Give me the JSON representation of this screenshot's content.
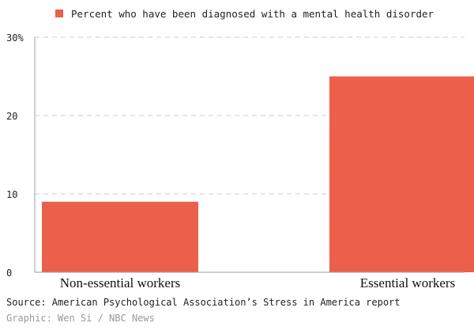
{
  "chart_data": {
    "type": "bar",
    "categories": [
      "Non-essential workers",
      "Essential workers"
    ],
    "series": [
      {
        "name": "Percent who have been diagnosed with a mental health disorder",
        "values": [
          9,
          25
        ]
      }
    ],
    "ylim": [
      0,
      30
    ],
    "yticks": [
      0,
      10,
      20,
      30
    ],
    "ytick_labels": [
      "0",
      "10",
      "20",
      "30%"
    ],
    "grid": true,
    "legend_position": "top-left",
    "colors": {
      "bar": "#ec5f4a",
      "grid": "#c7cfd6",
      "axis": "#9aa0a6"
    }
  },
  "footer": {
    "source": "Source: American Psychological Association’s Stress in America report",
    "credit": "Graphic: Wen Si / NBC News"
  }
}
